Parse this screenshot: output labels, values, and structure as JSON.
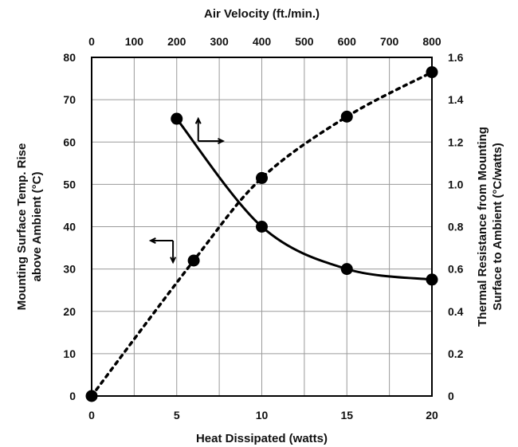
{
  "chart_data": {
    "type": "line",
    "title": "",
    "xlabel": "Heat Dissipated (watts)",
    "x2label": "Air Velocity (ft./min.)",
    "ylabel": [
      "Mounting Surface Temp. Rise",
      "above Ambient (°C)"
    ],
    "y2label": [
      "Thermal Resistance from Mounting",
      "Surface to Ambient (°C/watts)"
    ],
    "xlim": [
      0,
      20
    ],
    "x2lim": [
      0,
      800
    ],
    "ylim": [
      0,
      80
    ],
    "y2lim": [
      0,
      1.6
    ],
    "grid": true,
    "x_ticks": [
      "0",
      "5",
      "10",
      "15",
      "20"
    ],
    "x2_ticks": [
      "0",
      "100",
      "200",
      "300",
      "400",
      "500",
      "600",
      "700",
      "800"
    ],
    "y_ticks": [
      "0",
      "10",
      "20",
      "30",
      "40",
      "50",
      "60",
      "70",
      "80"
    ],
    "y2_ticks": [
      "0",
      "0.2",
      "0.4",
      "0.6",
      "0.8",
      "1.0",
      "1.2",
      "1.4",
      "1.6"
    ],
    "series": [
      {
        "axes": "bottom-left",
        "style": "dotted",
        "points": [
          {
            "x": 0,
            "y": 0
          },
          {
            "x": 6,
            "y": 32
          },
          {
            "x": 10,
            "y": 51.5
          },
          {
            "x": 15,
            "y": 66
          },
          {
            "x": 20,
            "y": 76.5
          }
        ]
      },
      {
        "axes": "top-right",
        "style": "solid",
        "points": [
          {
            "x": 200,
            "y": 1.31
          },
          {
            "x": 400,
            "y": 0.8
          },
          {
            "x": 600,
            "y": 0.6
          },
          {
            "x": 800,
            "y": 0.55
          }
        ]
      }
    ],
    "annotations": [
      {
        "type": "axis-arrow",
        "points_to": [
          "top",
          "right"
        ],
        "near_series": 1
      },
      {
        "type": "axis-arrow",
        "points_to": [
          "left",
          "bottom"
        ],
        "near_series": 0
      }
    ]
  }
}
